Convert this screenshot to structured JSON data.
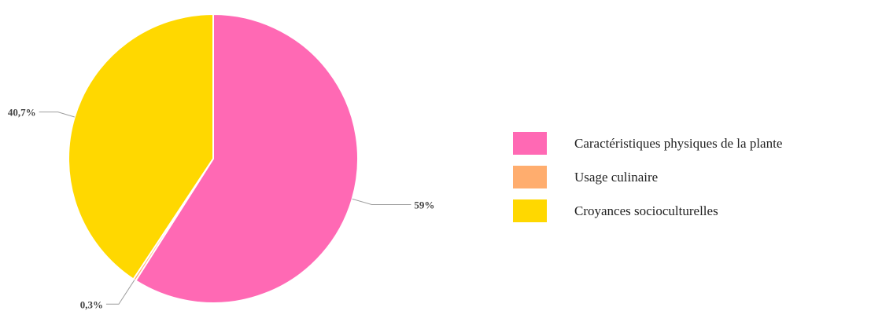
{
  "chart_data": {
    "type": "pie",
    "categories": [
      "Caractéristiques physiques de la plante",
      "Usage culinaire",
      "Croyances socioculturelles"
    ],
    "values": [
      59,
      0.3,
      40.7
    ],
    "data_labels": [
      "59%",
      "0,3%",
      "40,7%"
    ],
    "colors": [
      "#ff69b4",
      "#ffad6e",
      "#ffd800"
    ],
    "start_angle": "top, clockwise",
    "legend_position": "right"
  }
}
